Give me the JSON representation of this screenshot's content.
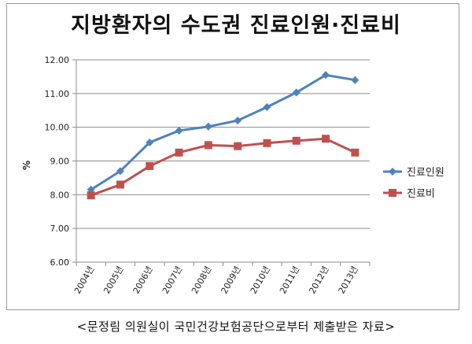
{
  "chart_data": {
    "type": "line",
    "title": "지방환자의 수도권 진료인원·진료비",
    "categories": [
      "2004년",
      "2005년",
      "2006년",
      "2007년",
      "2008년",
      "2009년",
      "2010년",
      "2011년",
      "2012년",
      "2013년"
    ],
    "series": [
      {
        "name": "진료인원",
        "color": "#4f81bd",
        "marker": "diamond",
        "values": [
          8.15,
          8.7,
          9.55,
          9.9,
          10.02,
          10.2,
          10.6,
          11.03,
          11.55,
          11.4
        ]
      },
      {
        "name": "진료비",
        "color": "#c0504d",
        "marker": "square",
        "values": [
          7.98,
          8.3,
          8.85,
          9.25,
          9.47,
          9.44,
          9.53,
          9.6,
          9.66,
          9.25
        ]
      }
    ],
    "ylabel": "%",
    "ylim": [
      6.0,
      12.0
    ],
    "yticks": [
      "6.00",
      "7.00",
      "8.00",
      "9.00",
      "10.00",
      "11.00",
      "12.00"
    ],
    "grid": true,
    "legend": "right"
  },
  "caption": "<문정림 의원실이 국민건강보험공단으로부터 제출받은 자료>"
}
